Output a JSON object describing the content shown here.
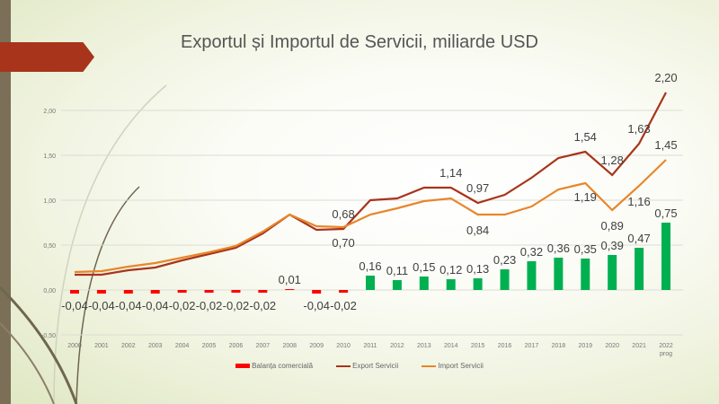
{
  "chart_data": {
    "type": "bar+line",
    "title": "Exportul și Importul de Servicii, miliarde USD",
    "categories": [
      "2000",
      "2001",
      "2002",
      "2003",
      "2004",
      "2005",
      "2006",
      "2007",
      "2008",
      "2009",
      "2010",
      "2011",
      "2012",
      "2013",
      "2014",
      "2015",
      "2016",
      "2017",
      "2018",
      "2019",
      "2020",
      "2021",
      "2022 prog"
    ],
    "ylim": [
      -0.5,
      2.0
    ],
    "yticks": [
      "-0,50",
      "0,00",
      "0,50",
      "1,00",
      "1,50",
      "2,00"
    ],
    "ytick_values": [
      -0.5,
      0,
      0.5,
      1.0,
      1.5,
      2.0
    ],
    "grid": true,
    "legend_position": "bottom",
    "series": [
      {
        "name": "Balanța comercială",
        "type": "bar",
        "color": "#ff0000",
        "color_positive": "#00b050",
        "values": [
          -0.04,
          -0.04,
          -0.04,
          -0.04,
          -0.02,
          -0.02,
          -0.02,
          -0.02,
          0.01,
          -0.04,
          -0.02,
          0.16,
          0.11,
          0.15,
          0.12,
          0.13,
          0.23,
          0.32,
          0.36,
          0.35,
          0.39,
          0.47,
          0.75
        ],
        "labels": [
          "-0,04",
          "-0,04",
          "-0,04",
          "-0,04",
          "-0,02",
          "-0,02",
          "-0,02",
          "-0,02",
          "0,01",
          "-0,04",
          "-0,02",
          "0,16",
          "0,11",
          "0,15",
          "0,12",
          "0,13",
          "0,23",
          "0,32",
          "0,36",
          "0,35",
          "0,39",
          "0,47",
          "0,75"
        ]
      },
      {
        "name": "Export Servicii",
        "type": "line",
        "color": "#a8341b",
        "values": [
          0.17,
          0.17,
          0.22,
          0.25,
          0.33,
          0.4,
          0.47,
          0.63,
          0.84,
          0.67,
          0.68,
          1.0,
          1.02,
          1.14,
          1.14,
          0.97,
          1.06,
          1.25,
          1.47,
          1.54,
          1.28,
          1.63,
          2.2
        ],
        "labels": {
          "10": "0,68",
          "14": "1,14",
          "15": "0,97",
          "19": "1,54",
          "20": "1,28",
          "21": "1,63",
          "22": "2,20"
        }
      },
      {
        "name": "Import Servicii",
        "type": "line",
        "color": "#e8862a",
        "values": [
          0.2,
          0.21,
          0.26,
          0.3,
          0.36,
          0.42,
          0.49,
          0.65,
          0.84,
          0.71,
          0.7,
          0.84,
          0.91,
          0.99,
          1.02,
          0.84,
          0.84,
          0.93,
          1.12,
          1.19,
          0.89,
          1.16,
          1.45
        ],
        "labels": {
          "10": "0,70",
          "15": "0,84",
          "19": "1,19",
          "20": "0,89",
          "21": "1,16",
          "22": "1,45"
        }
      }
    ]
  }
}
